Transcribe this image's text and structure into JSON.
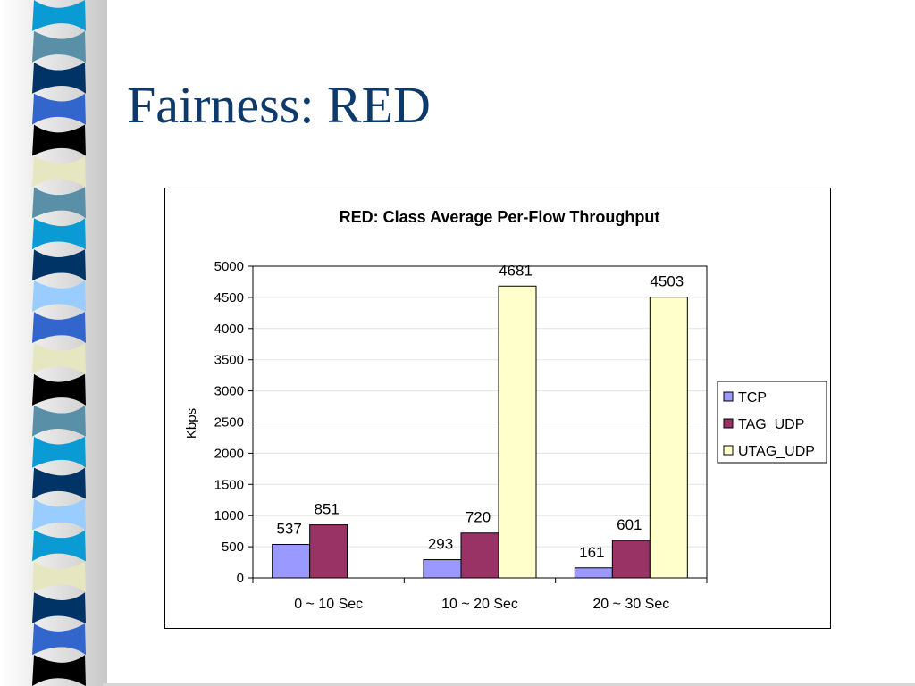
{
  "slide": {
    "title": "Fairness: RED"
  },
  "decoration": {
    "stripe_colors": [
      "#0a9bd4",
      "#5a8fa8",
      "#003366",
      "#3366cc",
      "#000000",
      "#e6e6c0",
      "#5a8fa8",
      "#0a9bd4",
      "#003366",
      "#99ccff",
      "#3366cc",
      "#e6e6c0",
      "#000000",
      "#5a8fa8",
      "#0a9bd4",
      "#003366",
      "#99ccff",
      "#0a9bd4",
      "#e6e6c0",
      "#003366",
      "#3366cc",
      "#000000"
    ]
  },
  "chart_data": {
    "type": "bar",
    "title": "RED: Class Average Per-Flow Throughput",
    "xlabel": "",
    "ylabel": "Kbps",
    "ylim": [
      0,
      5000
    ],
    "yticks": [
      0,
      500,
      1000,
      1500,
      2000,
      2500,
      3000,
      3500,
      4000,
      4500,
      5000
    ],
    "categories": [
      "0 ~ 10 Sec",
      "10 ~ 20 Sec",
      "20 ~ 30 Sec"
    ],
    "series": [
      {
        "name": "TCP",
        "color": "#9999ff",
        "values": [
          537,
          293,
          161
        ]
      },
      {
        "name": "TAG_UDP",
        "color": "#993366",
        "values": [
          851,
          720,
          601
        ]
      },
      {
        "name": "UTAG_UDP",
        "color": "#ffffcc",
        "values": [
          null,
          4681,
          4503
        ]
      }
    ],
    "data_labels": true,
    "grid": true,
    "legend": "right"
  }
}
